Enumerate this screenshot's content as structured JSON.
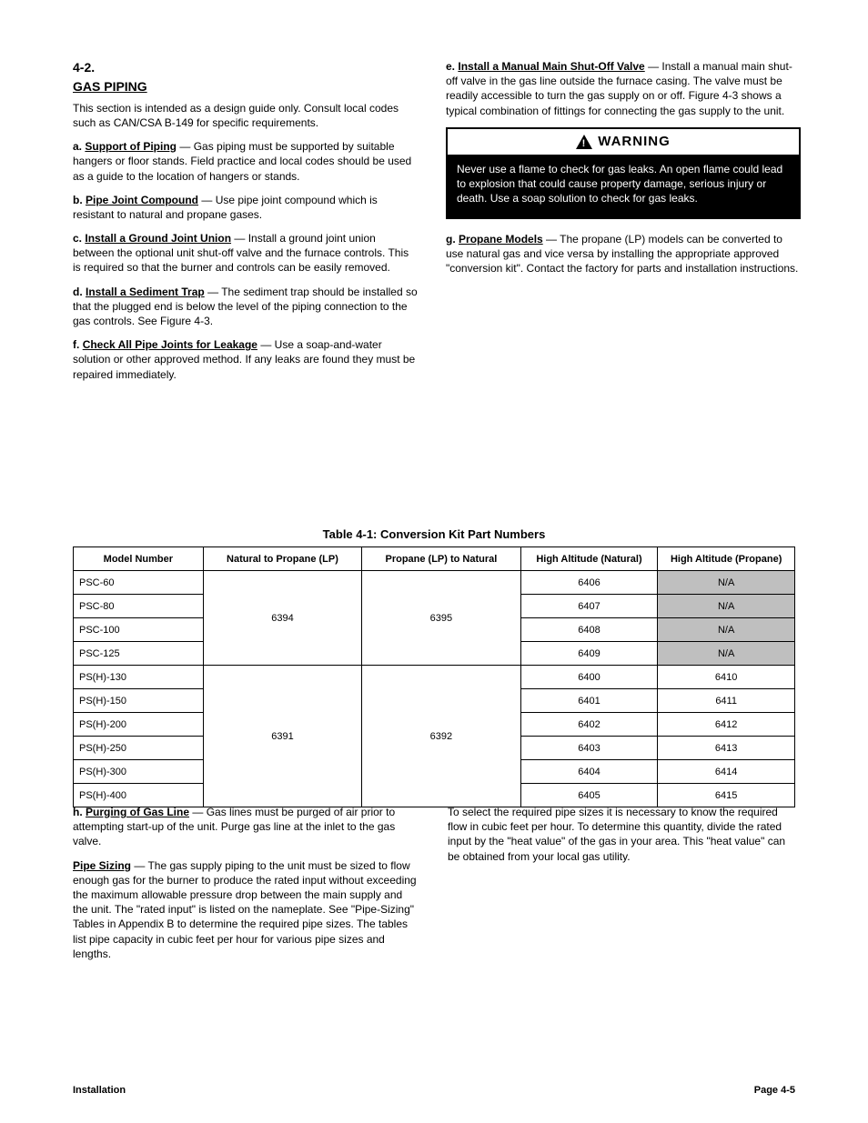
{
  "left": {
    "section_number": "4-2.",
    "section_title": "GAS PIPING",
    "p1": "This section is intended as a design guide only. Consult local codes such as CAN/CSA B-149 for specific requirements.",
    "a_letter": "a.",
    "a_title": "Support of Piping",
    "a_text": " — Gas piping must be supported by suitable hangers or floor stands. Field practice and local codes should be used as a guide to the location of hangers or stands.",
    "b_letter": "b.",
    "b_title": "Pipe Joint Compound",
    "b_text": " — Use pipe joint compound which is resistant to natural and propane gases.",
    "c_letter": "c.",
    "c_title": "Install a Ground Joint Union",
    "c_text": " — Install a ground joint union between the optional unit shut-off valve and the furnace controls. This is required so that the burner and controls can be easily removed.",
    "d_letter": "d.",
    "d_title": "Install a Sediment Trap",
    "d_text": " — The sediment trap should be installed so that the plugged end is below the level of the piping connection to the gas controls. See Figure 4-3.",
    "f_letter": "f.",
    "f_title": "Check All Pipe Joints for Leakage",
    "f_text": " — Use a soap-and-water solution or other approved method. If any leaks are found they must be repaired immediately."
  },
  "right": {
    "e_letter": "e.",
    "e_title": "Install a Manual Main Shut-Off Valve",
    "e_text": " — Install a manual main shut-off valve in the gas line outside the furnace casing. The valve must be readily accessible to turn the gas supply on or off. Figure 4-3 shows a typical combination of fittings for connecting the gas supply to the unit.",
    "warning_label": "WARNING",
    "warning_body": "Never use a flame to check for gas leaks. An open flame could lead to explosion that could cause property damage, serious injury or death. Use a soap solution to check for gas leaks.",
    "g_letter": "g.",
    "g_title": "Propane Models",
    "g_text": " — The propane (LP) models can be converted to use natural gas and vice versa by installing the appropriate approved \"conversion kit\". Contact the factory for parts and installation instructions."
  },
  "table": {
    "title": "Table 4-1: Conversion Kit Part Numbers",
    "columns": [
      "Model Number",
      "Natural to Propane (LP)",
      "Propane (LP) to Natural",
      "High Altitude (Natural)",
      "High Altitude (Propane)"
    ],
    "column_widths": [
      "18%",
      "22%",
      "22%",
      "19%",
      "19%"
    ],
    "group1": {
      "models": [
        "PSC-60",
        "PSC-80",
        "PSC-100",
        "PSC-125"
      ],
      "nat_to_lp": "6394",
      "lp_to_nat": "6395",
      "high_nat": [
        "6406",
        "6407",
        "6408",
        "6409"
      ],
      "high_lp": [
        "N/A",
        "N/A",
        "N/A",
        "N/A"
      ],
      "high_lp_shaded": [
        true,
        true,
        true,
        true
      ]
    },
    "group2": {
      "models": [
        "PS(H)-130",
        "PS(H)-150",
        "PS(H)-200",
        "PS(H)-250",
        "PS(H)-300",
        "PS(H)-400"
      ],
      "nat_to_lp": "6391",
      "lp_to_nat": "6392",
      "high_nat": [
        "6400",
        "6401",
        "6402",
        "6403",
        "6404",
        "6405"
      ],
      "high_lp": [
        "6410",
        "6411",
        "6412",
        "6413",
        "6414",
        "6415"
      ],
      "high_lp_shaded": [
        false,
        false,
        false,
        false,
        false,
        false
      ]
    }
  },
  "bottom": {
    "h_letter": "h.",
    "h_title": "Purging of Gas Line",
    "h_text": " — Gas lines must be purged of air prior to attempting start-up of the unit. Purge gas line at the inlet to the gas valve.",
    "pipe_title": "Pipe Sizing",
    "pipe_text": " — The gas supply piping to the unit must be sized to flow enough gas for the burner to produce the rated input without exceeding the maximum allowable pressure drop between the main supply and the unit. The \"rated input\" is listed on the nameplate. See \"Pipe-Sizing\" Tables in Appendix B to determine the required pipe sizes. The tables list pipe capacity in cubic feet per hour for various pipe sizes and lengths.",
    "pipe_p2": "To select the required pipe sizes it is necessary to know the required flow in cubic feet per hour. To determine this quantity, divide the rated input by the \"heat value\" of the gas in your area. This \"heat value\" can be obtained from your local gas utility."
  },
  "footer": {
    "left": "Installation",
    "right": "Page 4-5"
  },
  "colors": {
    "text": "#000000",
    "bg": "#ffffff",
    "shaded": "#bfbfbf",
    "warn_bg": "#000000",
    "warn_fg": "#ffffff"
  }
}
